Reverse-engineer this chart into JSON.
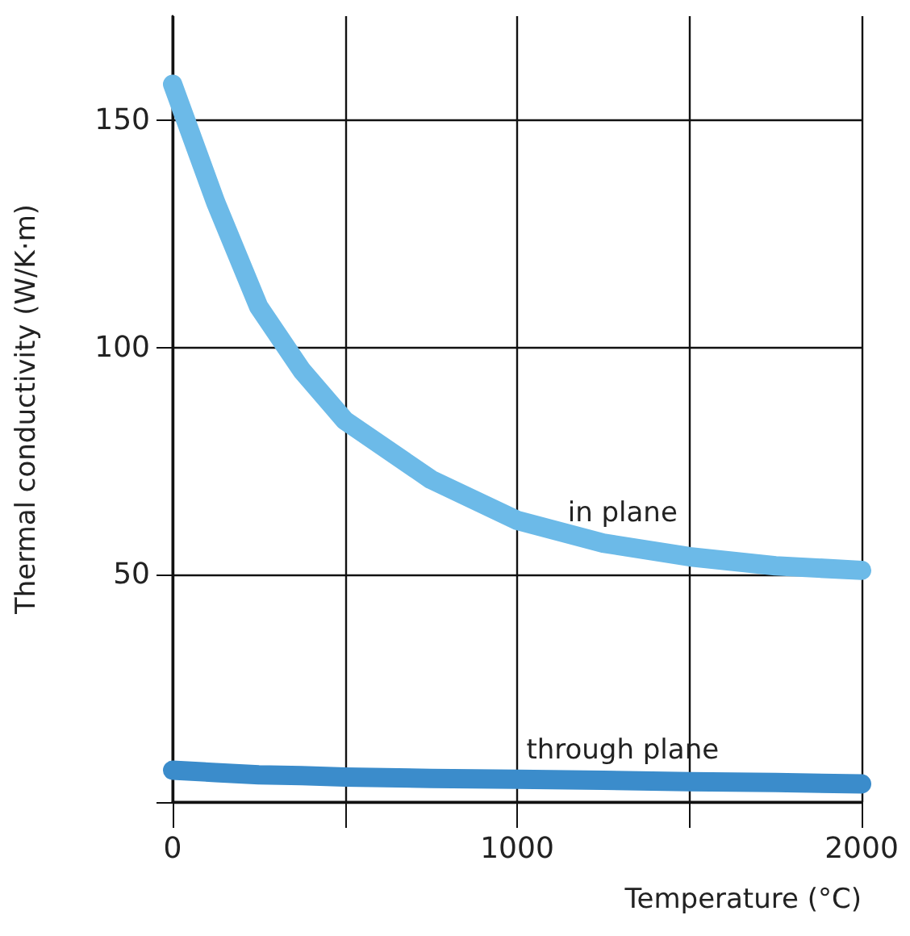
{
  "chart_data": {
    "type": "line",
    "xlabel": "Temperature (°C)",
    "ylabel": "Thermal conductivity (W/K·m)",
    "x": [
      0,
      125,
      250,
      375,
      500,
      750,
      1000,
      1250,
      1500,
      1750,
      2000
    ],
    "series": [
      {
        "name": "in plane",
        "color": "#6cbae8",
        "values": [
          158,
          132,
          109,
          95,
          84,
          71,
          62,
          57,
          54,
          52,
          51
        ]
      },
      {
        "name": "through plane",
        "color": "#3b8ccb",
        "values": [
          7,
          6.5,
          6,
          5.8,
          5.5,
          5.2,
          5,
          4.8,
          4.5,
          4.3,
          4
        ]
      }
    ],
    "xlim": [
      0,
      2000
    ],
    "xticks": [
      0,
      {
        "value": 500,
        "label": null
      },
      1000,
      {
        "value": 1500,
        "label": null
      },
      2000
    ],
    "ylim": [
      0,
      173
    ],
    "yticks": [
      {
        "value": 0,
        "label": null
      },
      50,
      100,
      150
    ],
    "grid": true,
    "marker": "none",
    "line_style": "solid"
  }
}
